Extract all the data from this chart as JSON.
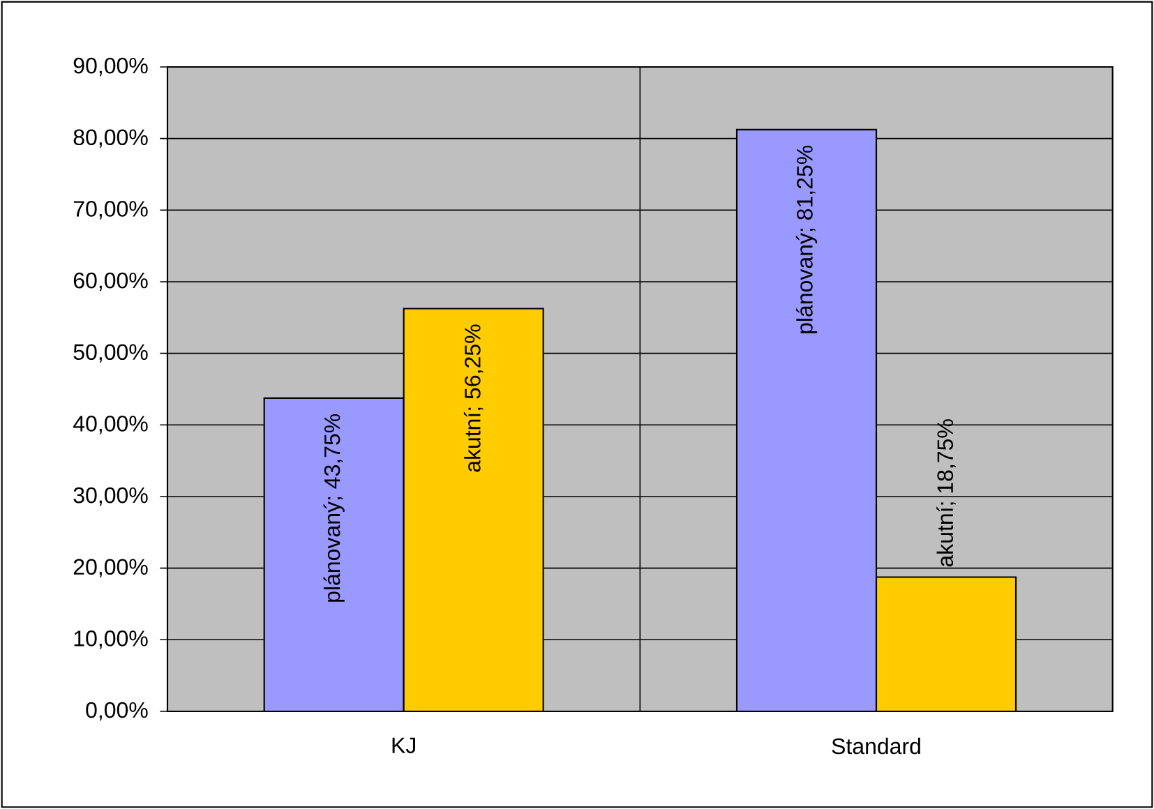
{
  "chart_data": {
    "type": "bar",
    "categories": [
      "KJ",
      "Standard"
    ],
    "series": [
      {
        "color": "#9999ff",
        "values": [
          43.75,
          81.25
        ],
        "value_labels": [
          "plánovaný; 43,75%",
          "plánovaný; 81,25%"
        ]
      },
      {
        "color": "#ffcc00",
        "values": [
          56.25,
          18.75
        ],
        "value_labels": [
          "akutní; 56,25%",
          "akutní; 18,75%"
        ]
      }
    ],
    "ylim": [
      0,
      90
    ],
    "yticks": [
      {
        "value": 0,
        "label": "0,00%"
      },
      {
        "value": 10,
        "label": "10,00%"
      },
      {
        "value": 20,
        "label": "20,00%"
      },
      {
        "value": 30,
        "label": "30,00%"
      },
      {
        "value": 40,
        "label": "40,00%"
      },
      {
        "value": 50,
        "label": "50,00%"
      },
      {
        "value": 60,
        "label": "60,00%"
      },
      {
        "value": 70,
        "label": "70,00%"
      },
      {
        "value": 80,
        "label": "80,00%"
      },
      {
        "value": 90,
        "label": "90,00%"
      }
    ],
    "grid": true
  }
}
